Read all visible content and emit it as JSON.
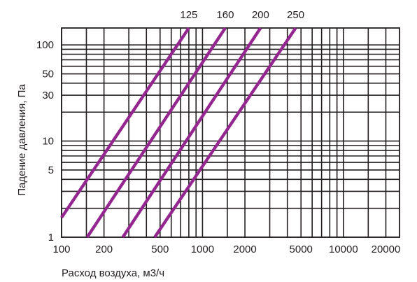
{
  "chart_data": {
    "type": "line",
    "title": "",
    "xlabel": "Расход воздуха, м3/ч",
    "ylabel": "Падение давления, Па",
    "xscale": "log",
    "yscale": "log",
    "xlim": [
      100,
      25000
    ],
    "ylim": [
      1,
      150
    ],
    "grid": true,
    "x_ticks": [
      100,
      200,
      500,
      1000,
      2000,
      5000,
      10000,
      20000
    ],
    "x_tick_labels": [
      "100",
      "200",
      "500",
      "1000",
      "2000",
      "5000",
      "10000",
      "20000"
    ],
    "x_grid": [
      100,
      150,
      200,
      300,
      400,
      500,
      600,
      700,
      800,
      900,
      1000,
      1500,
      2000,
      3000,
      4000,
      5000,
      6000,
      7000,
      8000,
      9000,
      10000,
      15000,
      20000
    ],
    "y_ticks": [
      1,
      5,
      10,
      30,
      50,
      100
    ],
    "y_tick_labels": [
      "1",
      "5",
      "10",
      "30",
      "50",
      "100"
    ],
    "y_grid": [
      1,
      2,
      3,
      4,
      5,
      6,
      7,
      8,
      9,
      10,
      20,
      30,
      40,
      50,
      60,
      70,
      80,
      90,
      100
    ],
    "series": [
      {
        "name": "125",
        "x": [
          100,
          800
        ],
        "y": [
          1.6,
          150
        ]
      },
      {
        "name": "160",
        "x": [
          152,
          1450
        ],
        "y": [
          1,
          150
        ]
      },
      {
        "name": "200",
        "x": [
          272,
          2580
        ],
        "y": [
          1,
          150
        ]
      },
      {
        "name": "250",
        "x": [
          458,
          4580
        ],
        "y": [
          1,
          150
        ]
      }
    ],
    "line_color": "#93278f"
  }
}
